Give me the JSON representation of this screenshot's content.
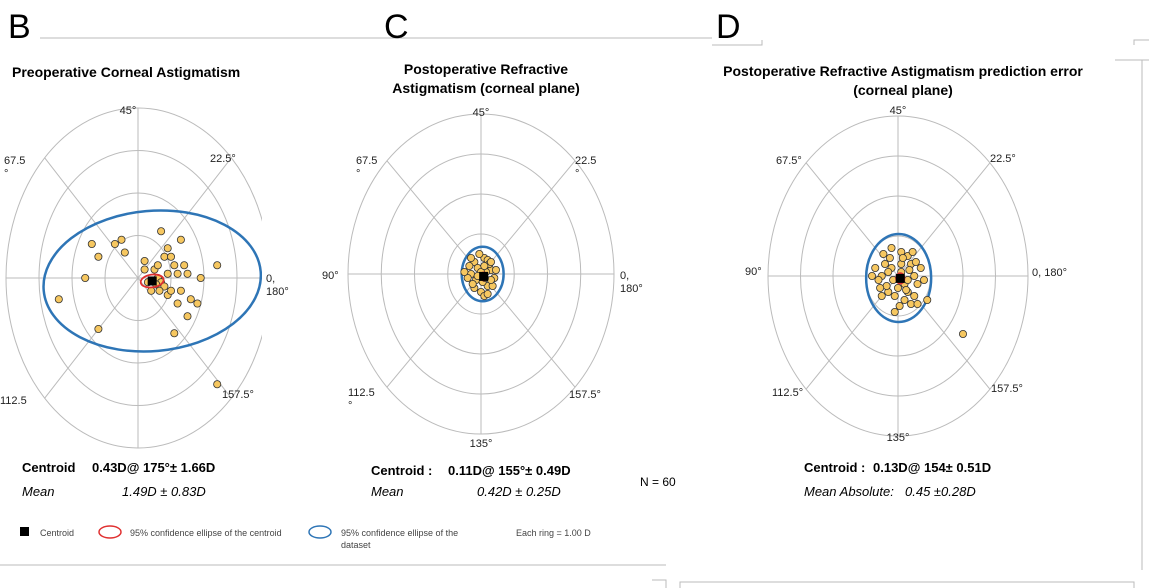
{
  "colors": {
    "accent_ring": "#2e75b6",
    "ci_red": "#e03030",
    "point_fill": "#f6c760",
    "point_stroke": "#333333",
    "grid": "#bbbbbb"
  },
  "chart_data": [
    {
      "type": "scatter",
      "panel_letter": "B",
      "title_lines": [
        "Preoperative Corneal Astigmatism"
      ],
      "angle_labels": [
        "45°",
        "67.5\n°",
        "22.5°",
        "",
        "0,\n180°",
        "112.5",
        "157.5°",
        ""
      ],
      "rings": 4,
      "ring_unit": "D",
      "centroid_text": {
        "label": "Centroid",
        "value": "0.43D@ 175°± 1.66D"
      },
      "mean_text": {
        "label": "Mean",
        "value": "1.49D ± 0.83D"
      },
      "centroid": {
        "x": 0.43,
        "y": -0.07
      },
      "points": [
        [
          1.5,
          0.1
        ],
        [
          2.4,
          0.3
        ],
        [
          -1.4,
          0.8
        ],
        [
          -1.2,
          0.5
        ],
        [
          -0.5,
          0.9
        ],
        [
          -0.7,
          0.8
        ],
        [
          0.7,
          1.1
        ],
        [
          0.9,
          0.7
        ],
        [
          1.1,
          0.3
        ],
        [
          0.5,
          0.2
        ],
        [
          0.6,
          0.0
        ],
        [
          0.7,
          -0.1
        ],
        [
          0.8,
          -0.2
        ],
        [
          0.4,
          -0.3
        ],
        [
          0.3,
          -0.1
        ],
        [
          0.2,
          0.2
        ],
        [
          0.9,
          -0.4
        ],
        [
          1.2,
          -0.6
        ],
        [
          1.6,
          -0.5
        ],
        [
          1.5,
          -0.9
        ],
        [
          1.3,
          -0.3
        ],
        [
          1.9,
          0.0
        ],
        [
          1.8,
          -0.6
        ],
        [
          0.2,
          0.4
        ],
        [
          1.1,
          -1.3
        ],
        [
          1.0,
          -0.3
        ],
        [
          1.4,
          0.3
        ],
        [
          0.8,
          0.5
        ],
        [
          0.6,
          0.3
        ],
        [
          0.9,
          0.1
        ],
        [
          2.4,
          -2.5
        ],
        [
          -2.4,
          -0.5
        ],
        [
          -1.2,
          -1.2
        ],
        [
          -0.4,
          0.6
        ],
        [
          -1.6,
          0.0
        ],
        [
          1.0,
          0.5
        ],
        [
          1.2,
          0.1
        ],
        [
          0.55,
          -0.15
        ],
        [
          0.65,
          -0.3
        ],
        [
          1.3,
          0.9
        ]
      ],
      "ellipse_ci_centroid": {
        "cx": 0.43,
        "cy": -0.07,
        "rx": 0.35,
        "ry": 0.15,
        "tilt_deg": -8
      },
      "ellipse_ci_dataset": {
        "cx": 0.43,
        "cy": -0.07,
        "rx": 3.3,
        "ry": 1.65,
        "tilt_deg": -5
      }
    },
    {
      "type": "scatter",
      "panel_letter": "C",
      "title_lines": [
        "Postoperative Refractive",
        "Astigmatism (corneal plane)"
      ],
      "angle_labels": [
        "45°",
        "67.5\n°",
        "22.5\n°",
        "90°",
        "0,\n180°",
        "112.5\n°",
        "157.5°",
        "135°"
      ],
      "rings": 4,
      "ring_unit": "D",
      "centroid_text": {
        "label": "Centroid : ",
        "value": "0.11D@ 155°± 0.49D"
      },
      "mean_text": {
        "label": "Mean",
        "value": "0.42D ± 0.25D"
      },
      "centroid": {
        "x": 0.08,
        "y": -0.06
      },
      "points": [
        [
          0.1,
          0.4
        ],
        [
          0.2,
          0.35
        ],
        [
          -0.2,
          0.3
        ],
        [
          0.3,
          0.1
        ],
        [
          -0.3,
          0.0
        ],
        [
          0.4,
          -0.1
        ],
        [
          -0.4,
          -0.1
        ],
        [
          0.2,
          -0.3
        ],
        [
          -0.2,
          -0.35
        ],
        [
          0.0,
          -0.45
        ],
        [
          0.35,
          -0.3
        ],
        [
          -0.35,
          0.2
        ],
        [
          0.25,
          0.25
        ],
        [
          -0.1,
          0.15
        ],
        [
          0.15,
          0.05
        ],
        [
          -0.15,
          -0.15
        ],
        [
          0.05,
          -0.2
        ],
        [
          0.3,
          -0.15
        ],
        [
          -0.25,
          -0.25
        ],
        [
          0.1,
          -0.55
        ],
        [
          -0.05,
          0.5
        ],
        [
          0.45,
          0.1
        ],
        [
          -0.5,
          0.05
        ],
        [
          0.2,
          -0.5
        ],
        [
          -0.3,
          0.4
        ],
        [
          0.0,
          0.05
        ],
        [
          0.1,
          0.2
        ],
        [
          0.12,
          -0.1
        ],
        [
          -0.1,
          -0.05
        ],
        [
          0.3,
          0.3
        ]
      ],
      "ellipse_ci_centroid": {
        "cx": 0.08,
        "cy": -0.06,
        "rx": 0.1,
        "ry": 0.1,
        "tilt_deg": 0
      },
      "ellipse_ci_dataset": {
        "cx": 0.05,
        "cy": 0.0,
        "rx": 0.63,
        "ry": 0.68,
        "tilt_deg": 0
      }
    },
    {
      "type": "scatter",
      "panel_letter": "D",
      "title_lines": [
        "Postoperative Refractive Astigmatism prediction error",
        "(corneal plane)"
      ],
      "angle_labels": [
        "45°",
        "67.5°",
        "22.5°",
        "90°",
        "0, 180°",
        "112.5°",
        "157.5°",
        "135°"
      ],
      "rings": 4,
      "ring_unit": "D",
      "centroid_text": {
        "label": "Centroid :",
        "value": "0.13D@ 154± 0.51D"
      },
      "mean_text": {
        "label": "Mean Absolute:",
        "value": "0.45  ±0.28D"
      },
      "centroid": {
        "x": 0.07,
        "y": -0.06
      },
      "points": [
        [
          0.3,
          0.5
        ],
        [
          -0.2,
          0.7
        ],
        [
          0.1,
          0.6
        ],
        [
          0.4,
          0.3
        ],
        [
          -0.4,
          0.3
        ],
        [
          0.5,
          0.0
        ],
        [
          -0.5,
          0.0
        ],
        [
          0.3,
          -0.4
        ],
        [
          -0.3,
          -0.4
        ],
        [
          0.6,
          -0.2
        ],
        [
          -0.6,
          -0.1
        ],
        [
          0.2,
          -0.6
        ],
        [
          -0.1,
          -0.5
        ],
        [
          0.7,
          0.2
        ],
        [
          -0.7,
          0.2
        ],
        [
          0.5,
          -0.5
        ],
        [
          -0.5,
          -0.5
        ],
        [
          0.1,
          0.3
        ],
        [
          0.2,
          -0.2
        ],
        [
          -0.2,
          0.2
        ],
        [
          0.35,
          0.15
        ],
        [
          -0.3,
          0.1
        ],
        [
          0.0,
          -0.3
        ],
        [
          0.4,
          -0.7
        ],
        [
          -0.1,
          -0.9
        ],
        [
          0.8,
          -0.1
        ],
        [
          -0.8,
          0.0
        ],
        [
          0.15,
          0.45
        ],
        [
          0.25,
          -0.35
        ],
        [
          -0.35,
          -0.25
        ],
        [
          0.45,
          0.6
        ],
        [
          -0.45,
          0.55
        ],
        [
          0.1,
          0.1
        ],
        [
          0.3,
          -0.1
        ],
        [
          -0.15,
          -0.1
        ],
        [
          0.55,
          0.35
        ],
        [
          -0.55,
          -0.3
        ],
        [
          0.9,
          -0.6
        ],
        [
          0.6,
          -0.7
        ],
        [
          2.0,
          -1.45
        ],
        [
          -0.25,
          0.45
        ],
        [
          0.05,
          -0.75
        ]
      ],
      "ellipse_ci_centroid": {
        "cx": 0.07,
        "cy": -0.06,
        "rx": 0.13,
        "ry": 0.13,
        "tilt_deg": 0
      },
      "ellipse_ci_dataset": {
        "cx": 0.02,
        "cy": -0.05,
        "rx": 1.0,
        "ry": 1.1,
        "tilt_deg": 0
      }
    }
  ],
  "legend": {
    "centroid": "Centroid",
    "ci_centroid": "95% confidence ellipse of  the centroid",
    "ci_dataset_1": "95% confidence ellipse of the",
    "ci_dataset_2": "dataset",
    "ring_note": "Each ring =  1.00  D"
  },
  "n_label": "N = 60"
}
